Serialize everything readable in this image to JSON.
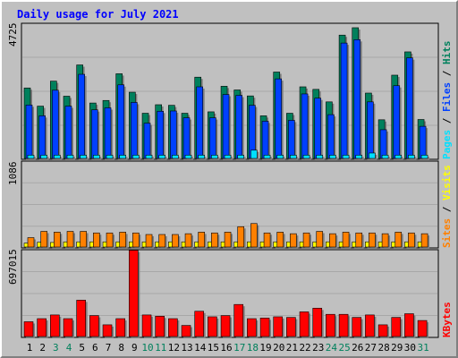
{
  "title": "Daily usage for July 2021",
  "colors": {
    "hits": "#00805c",
    "files": "#0040ff",
    "pages": "#00e0ff",
    "sites": "#ff8000",
    "visits": "#ffff00",
    "kbytes": "#ff0000",
    "weekend_label": "#00805c",
    "weekday_label": "#000000",
    "panel_bg": "#c0c0c0"
  },
  "chart_data": [
    {
      "type": "bar",
      "panel": "top",
      "ymax_label": "4725",
      "ylim": [
        0,
        4725
      ],
      "legend": [
        {
          "name": "Pages",
          "color": "#00e0ff"
        },
        {
          "name": "Files",
          "color": "#0040ff"
        },
        {
          "name": "Hits",
          "color": "#00805c"
        }
      ],
      "legend_sep": " / ",
      "categories": [
        "1",
        "2",
        "3",
        "4",
        "5",
        "6",
        "7",
        "8",
        "9",
        "10",
        "11",
        "12",
        "13",
        "14",
        "15",
        "16",
        "17",
        "18",
        "19",
        "20",
        "21",
        "22",
        "23",
        "24",
        "25",
        "26",
        "27",
        "28",
        "29",
        "30",
        "31"
      ],
      "series": [
        {
          "name": "Hits",
          "values": [
            2480,
            1840,
            2720,
            2190,
            3290,
            1950,
            2040,
            2980,
            2330,
            1590,
            1890,
            1870,
            1590,
            2860,
            1640,
            2540,
            2410,
            2200,
            1500,
            3040,
            1590,
            2520,
            2430,
            1990,
            4340,
            4600,
            2300,
            1360,
            2930,
            3750,
            1370
          ]
        },
        {
          "name": "Files",
          "values": [
            1880,
            1500,
            2400,
            1840,
            2960,
            1710,
            1780,
            2590,
            1970,
            1240,
            1660,
            1670,
            1430,
            2520,
            1430,
            2250,
            2220,
            1870,
            1310,
            2800,
            1340,
            2270,
            2120,
            1540,
            4060,
            4180,
            1990,
            1010,
            2560,
            3540,
            1130
          ]
        },
        {
          "name": "Pages",
          "values": [
            115,
            115,
            115,
            115,
            115,
            115,
            115,
            115,
            115,
            115,
            115,
            115,
            115,
            115,
            115,
            115,
            115,
            290,
            115,
            115,
            115,
            115,
            115,
            115,
            115,
            115,
            190,
            115,
            115,
            115,
            115
          ]
        }
      ]
    },
    {
      "type": "bar",
      "panel": "middle",
      "ymax_label": "1086",
      "ylim": [
        0,
        1086
      ],
      "legend": [
        {
          "name": "Sites",
          "color": "#ff8000"
        },
        {
          "name": "Visits",
          "color": "#ffff00"
        }
      ],
      "legend_sep": " / ",
      "categories": [
        "1",
        "2",
        "3",
        "4",
        "5",
        "6",
        "7",
        "8",
        "9",
        "10",
        "11",
        "12",
        "13",
        "14",
        "15",
        "16",
        "17",
        "18",
        "19",
        "20",
        "21",
        "22",
        "23",
        "24",
        "25",
        "26",
        "27",
        "28",
        "29",
        "30",
        "31"
      ],
      "series": [
        {
          "name": "Visits",
          "values": [
            50,
            62,
            58,
            66,
            66,
            66,
            66,
            66,
            66,
            66,
            66,
            66,
            66,
            66,
            66,
            66,
            66,
            66,
            66,
            66,
            66,
            66,
            66,
            66,
            66,
            66,
            66,
            66,
            66,
            66,
            66
          ]
        },
        {
          "name": "Sites",
          "values": [
            120,
            200,
            190,
            200,
            200,
            180,
            180,
            190,
            180,
            160,
            160,
            160,
            170,
            190,
            180,
            190,
            260,
            300,
            180,
            190,
            170,
            180,
            200,
            170,
            190,
            180,
            180,
            170,
            190,
            180,
            170
          ]
        }
      ]
    },
    {
      "type": "bar",
      "panel": "bottom",
      "ymax_label": "697015",
      "ylim": [
        0,
        697015
      ],
      "legend": [
        {
          "name": "KBytes",
          "color": "#ff0000"
        }
      ],
      "legend_sep": "",
      "categories": [
        "1",
        "2",
        "3",
        "4",
        "5",
        "6",
        "7",
        "8",
        "9",
        "10",
        "11",
        "12",
        "13",
        "14",
        "15",
        "16",
        "17",
        "18",
        "19",
        "20",
        "21",
        "22",
        "23",
        "24",
        "25",
        "26",
        "27",
        "28",
        "29",
        "30",
        "31"
      ],
      "series": [
        {
          "name": "KBytes",
          "values": [
            120000,
            145000,
            175000,
            145000,
            295000,
            170000,
            95000,
            145000,
            700000,
            175000,
            165000,
            145000,
            90000,
            205000,
            160000,
            170000,
            260000,
            145000,
            150000,
            160000,
            155000,
            200000,
            230000,
            180000,
            180000,
            155000,
            175000,
            95000,
            155000,
            185000,
            130000
          ]
        }
      ]
    }
  ],
  "x_labels": [
    {
      "text": "1",
      "weekend": false
    },
    {
      "text": "2",
      "weekend": false
    },
    {
      "text": "3",
      "weekend": true
    },
    {
      "text": "4",
      "weekend": true
    },
    {
      "text": "5",
      "weekend": false
    },
    {
      "text": "6",
      "weekend": false
    },
    {
      "text": "7",
      "weekend": false
    },
    {
      "text": "8",
      "weekend": false
    },
    {
      "text": "9",
      "weekend": false
    },
    {
      "text": "10",
      "weekend": true
    },
    {
      "text": "11",
      "weekend": true
    },
    {
      "text": "12",
      "weekend": false
    },
    {
      "text": "13",
      "weekend": false
    },
    {
      "text": "14",
      "weekend": false
    },
    {
      "text": "15",
      "weekend": false
    },
    {
      "text": "16",
      "weekend": false
    },
    {
      "text": "17",
      "weekend": true
    },
    {
      "text": "18",
      "weekend": true
    },
    {
      "text": "19",
      "weekend": false
    },
    {
      "text": "20",
      "weekend": false
    },
    {
      "text": "21",
      "weekend": false
    },
    {
      "text": "22",
      "weekend": false
    },
    {
      "text": "23",
      "weekend": false
    },
    {
      "text": "24",
      "weekend": true
    },
    {
      "text": "25",
      "weekend": true
    },
    {
      "text": "26",
      "weekend": false
    },
    {
      "text": "27",
      "weekend": false
    },
    {
      "text": "28",
      "weekend": false
    },
    {
      "text": "29",
      "weekend": false
    },
    {
      "text": "30",
      "weekend": false
    },
    {
      "text": "31",
      "weekend": true
    }
  ]
}
